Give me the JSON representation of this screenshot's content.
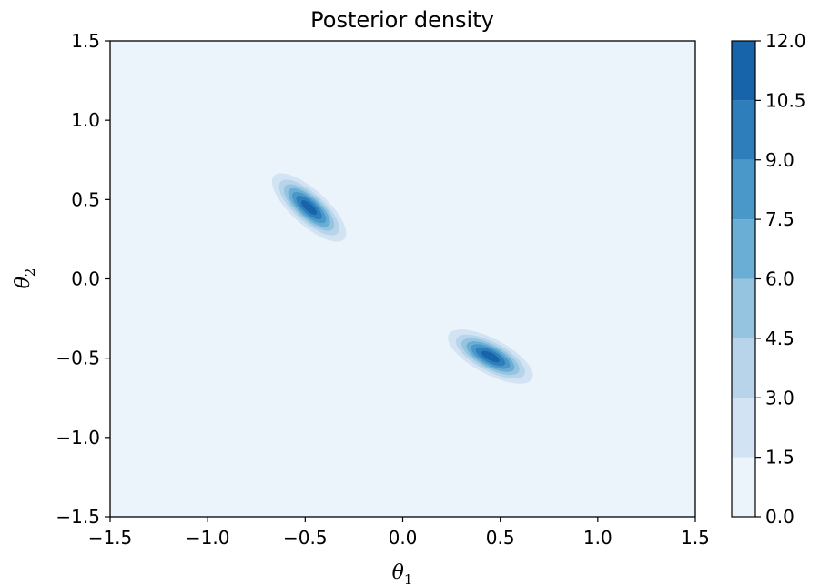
{
  "chart_data": {
    "type": "contour",
    "title": "Posterior density",
    "xlabel": {
      "base": "θ",
      "sub": "1"
    },
    "ylabel": {
      "base": "θ",
      "sub": "2"
    },
    "xlim": [
      -1.5,
      1.5
    ],
    "ylim": [
      -1.5,
      1.5
    ],
    "xticks": [
      -1.5,
      -1.0,
      -0.5,
      0.0,
      0.5,
      1.0,
      1.5
    ],
    "xtick_labels": [
      "−1.5",
      "−1.0",
      "−0.5",
      "0.0",
      "0.5",
      "1.0",
      "1.5"
    ],
    "yticks": [
      -1.5,
      -1.0,
      -0.5,
      0.0,
      0.5,
      1.0,
      1.5
    ],
    "ytick_labels": [
      "−1.5",
      "−1.0",
      "−0.5",
      "0.0",
      "0.5",
      "1.0",
      "1.5"
    ],
    "grid": false,
    "colormap": "Blues",
    "levels": [
      0.0,
      1.5,
      3.0,
      4.5,
      6.0,
      7.5,
      9.0,
      10.5,
      12.0
    ],
    "level_labels": [
      "0.0",
      "1.5",
      "3.0",
      "4.5",
      "6.0",
      "7.5",
      "9.0",
      "10.5",
      "12.0"
    ],
    "level_colors": [
      "#ebf3fb",
      "#d2e3f3",
      "#b7d4ea",
      "#94c4df",
      "#6aaed6",
      "#4a98c9",
      "#2e7ebc",
      "#1764ab",
      "#084a91"
    ],
    "modes": [
      {
        "x": -0.48,
        "y": 0.45,
        "peak": 11.5,
        "sigma_major": 0.12,
        "sigma_minor": 0.055,
        "angle_deg": -42
      },
      {
        "x": 0.45,
        "y": -0.49,
        "peak": 11.5,
        "sigma_major": 0.12,
        "sigma_minor": 0.055,
        "angle_deg": -28
      }
    ],
    "colorbar": {
      "placement": "right",
      "ticks": [
        0.0,
        1.5,
        3.0,
        4.5,
        6.0,
        7.5,
        9.0,
        10.5,
        12.0
      ]
    }
  }
}
